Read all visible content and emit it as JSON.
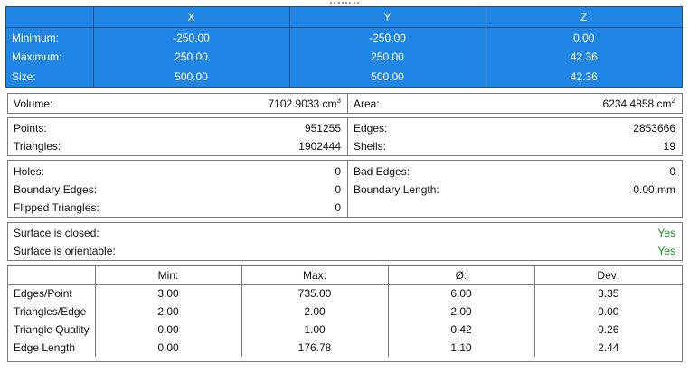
{
  "bounds": {
    "headers": [
      "",
      "X",
      "Y",
      "Z"
    ],
    "rows": [
      {
        "label": "Minimum:",
        "x": "-250.00",
        "y": "-250.00",
        "z": "0.00"
      },
      {
        "label": "Maximum:",
        "x": "250.00",
        "y": "250.00",
        "z": "42.36"
      },
      {
        "label": "Size:",
        "x": "500.00",
        "y": "500.00",
        "z": "42.36"
      }
    ]
  },
  "volume_area": {
    "volume_label": "Volume:",
    "volume_value": "7102.9033 cm",
    "volume_unit_sup": "3",
    "area_label": "Area:",
    "area_value": "6234.4858 cm",
    "area_unit_sup": "2"
  },
  "counts": {
    "points_label": "Points:",
    "points_value": "951255",
    "triangles_label": "Triangles:",
    "triangles_value": "1902444",
    "edges_label": "Edges:",
    "edges_value": "2853666",
    "shells_label": "Shells:",
    "shells_value": "19"
  },
  "defects": {
    "holes_label": "Holes:",
    "holes_value": "0",
    "boundary_edges_label": "Boundary Edges:",
    "boundary_edges_value": "0",
    "flipped_label": "Flipped Triangles:",
    "flipped_value": "0",
    "bad_edges_label": "Bad Edges:",
    "bad_edges_value": "0",
    "boundary_length_label": "Boundary Length:",
    "boundary_length_value": "0.00 mm"
  },
  "surface": {
    "closed_label": "Surface is closed:",
    "closed_value": "Yes",
    "orientable_label": "Surface is orientable:",
    "orientable_value": "Yes",
    "ok_color": "#119911"
  },
  "stats": {
    "headers": [
      "",
      "Min:",
      "Max:",
      "Ø:",
      "Dev:"
    ],
    "rows": [
      {
        "label": "Edges/Point",
        "min": "3.00",
        "max": "735.00",
        "avg": "6.00",
        "dev": "3.35"
      },
      {
        "label": "Triangles/Edge",
        "min": "2.00",
        "max": "2.00",
        "avg": "2.00",
        "dev": "0.00"
      },
      {
        "label": "Triangle Quality",
        "min": "0.00",
        "max": "1.00",
        "avg": "0.42",
        "dev": "0.26"
      },
      {
        "label": "Edge Length",
        "min": "0.00",
        "max": "176.78",
        "avg": "1.10",
        "dev": "2.44"
      }
    ]
  },
  "colors": {
    "header_blue": "#1f86e6",
    "border_dark_blue": "#1b4f8c"
  }
}
